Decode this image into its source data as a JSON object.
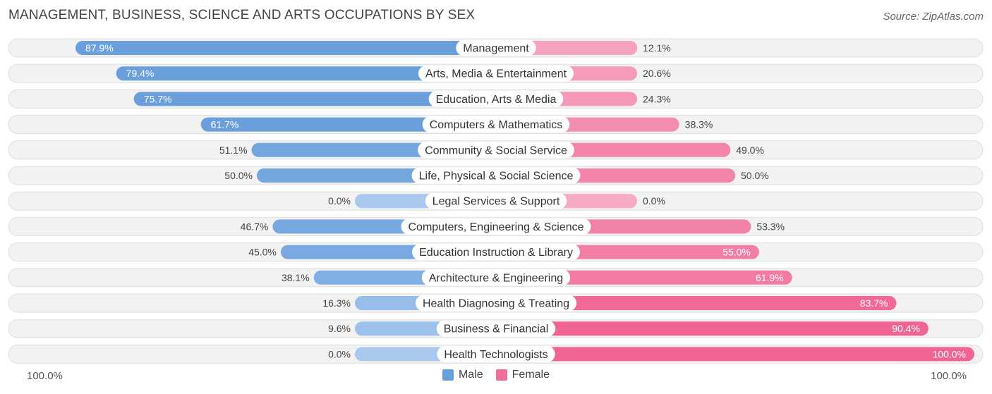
{
  "header": {
    "title": "MANAGEMENT, BUSINESS, SCIENCE AND ARTS OCCUPATIONS BY SEX",
    "source": "Source: ZipAtlas.com"
  },
  "axis": {
    "left_label": "100.0%",
    "right_label": "100.0%"
  },
  "legend": {
    "male_label": "Male",
    "female_label": "Female",
    "male_color": "#6a9fdc",
    "female_color": "#f06d98"
  },
  "chart_data": {
    "type": "bar",
    "title": "MANAGEMENT, BUSINESS, SCIENCE AND ARTS OCCUPATIONS BY SEX",
    "categories": [
      "Management",
      "Arts, Media & Entertainment",
      "Education, Arts & Media",
      "Computers & Mathematics",
      "Community & Social Service",
      "Life, Physical & Social Science",
      "Legal Services & Support",
      "Computers, Engineering & Science",
      "Education Instruction & Library",
      "Architecture & Engineering",
      "Health Diagnosing & Treating",
      "Business & Financial",
      "Health Technologists"
    ],
    "series": [
      {
        "name": "Male",
        "values": [
          87.9,
          79.4,
          75.7,
          61.7,
          51.1,
          50.0,
          0.0,
          46.7,
          45.0,
          38.1,
          16.3,
          9.6,
          0.0
        ]
      },
      {
        "name": "Female",
        "values": [
          12.1,
          20.6,
          24.3,
          38.3,
          49.0,
          50.0,
          0.0,
          53.3,
          55.0,
          61.9,
          83.7,
          90.4,
          100.0
        ]
      }
    ],
    "value_labels": {
      "male": [
        "87.9%",
        "79.4%",
        "75.7%",
        "61.7%",
        "51.1%",
        "50.0%",
        "0.0%",
        "46.7%",
        "45.0%",
        "38.1%",
        "16.3%",
        "9.6%",
        "0.0%"
      ],
      "female": [
        "12.1%",
        "20.6%",
        "24.3%",
        "38.3%",
        "49.0%",
        "50.0%",
        "0.0%",
        "53.3%",
        "55.0%",
        "61.9%",
        "83.7%",
        "90.4%",
        "100.0%"
      ]
    },
    "xlim": [
      -100,
      100
    ],
    "orientation": "horizontal-diverging",
    "legend_position": "bottom-center"
  }
}
